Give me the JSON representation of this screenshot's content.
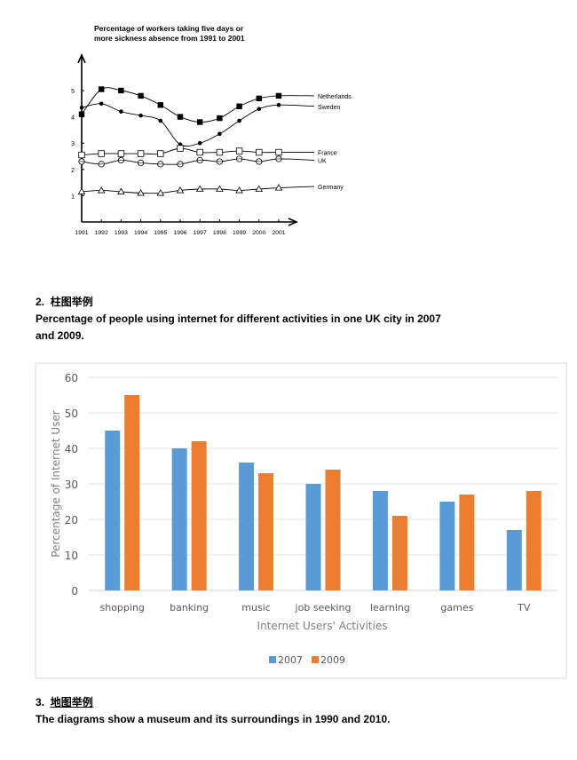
{
  "chart_data": [
    {
      "type": "line",
      "title": "Percentage of workers taking five days or more sickness absence from 1991 to 2001",
      "title_lines": [
        "Percentage of workers taking five days or",
        "more sickness absence from 1991 to 2001"
      ],
      "xlabel": "",
      "ylabel": "",
      "x": [
        1991,
        1992,
        1993,
        1994,
        1995,
        1996,
        1997,
        1998,
        1999,
        2000,
        2001
      ],
      "x_tick_labels": [
        "1991",
        "1992",
        "1993",
        "1994",
        "1995",
        "1996",
        "1997",
        "1998",
        "1999",
        "2000",
        "2001"
      ],
      "y_ticks": [
        1,
        2,
        3,
        4,
        5
      ],
      "y_tick_labels": [
        "1",
        "2",
        "3",
        "4",
        "5"
      ],
      "ylim": [
        0,
        5.9
      ],
      "grid": false,
      "legend": "inline-right",
      "series": [
        {
          "name": "Netherlands",
          "marker": "filled-square",
          "values": [
            4.1,
            5.05,
            5.0,
            4.8,
            4.45,
            4.0,
            3.8,
            3.95,
            4.4,
            4.7,
            4.8
          ],
          "end_value": 4.8
        },
        {
          "name": "Sweden",
          "marker": "filled-circle",
          "values": [
            4.35,
            4.5,
            4.2,
            4.05,
            3.85,
            2.95,
            3.0,
            3.35,
            3.85,
            4.3,
            4.45
          ],
          "end_value": 4.4
        },
        {
          "name": "France",
          "marker": "open-square",
          "values": [
            2.55,
            2.6,
            2.6,
            2.6,
            2.6,
            2.8,
            2.65,
            2.65,
            2.7,
            2.65,
            2.65
          ],
          "end_value": 2.65
        },
        {
          "name": "UK",
          "marker": "open-circle",
          "values": [
            2.3,
            2.2,
            2.35,
            2.25,
            2.2,
            2.2,
            2.35,
            2.3,
            2.4,
            2.3,
            2.4
          ],
          "end_value": 2.35
        },
        {
          "name": "Germany",
          "marker": "open-triangle",
          "values": [
            1.15,
            1.2,
            1.15,
            1.1,
            1.1,
            1.2,
            1.25,
            1.25,
            1.2,
            1.25,
            1.3
          ],
          "end_value": 1.35
        }
      ]
    },
    {
      "type": "bar",
      "title": "Percentage of people using internet for different activities in one UK city in 2007 and 2009.",
      "xlabel": "Internet Users' Activities",
      "ylabel": "Percentage of Internet User",
      "categories": [
        "shopping",
        "banking",
        "music",
        "job seeking",
        "learning",
        "games",
        "TV"
      ],
      "ylim": [
        0,
        60
      ],
      "y_ticks": [
        0,
        10,
        20,
        30,
        40,
        50,
        60
      ],
      "y_tick_labels": [
        "0",
        "10",
        "20",
        "30",
        "40",
        "50",
        "60"
      ],
      "grid": true,
      "legend": "bottom-center",
      "series": [
        {
          "name": "2007",
          "color": "#5b9bd5",
          "values": [
            45,
            40,
            36,
            30,
            28,
            25,
            17
          ]
        },
        {
          "name": "2009",
          "color": "#ed7d31",
          "values": [
            55,
            42,
            33,
            34,
            21,
            27,
            28
          ]
        }
      ]
    }
  ],
  "sections": {
    "s2": {
      "heading_num": "2.",
      "heading_cn": "柱图举例",
      "title_line1": "Percentage of people using internet for different activities in one UK city in 2007",
      "title_line2": "and 2009."
    },
    "s3": {
      "heading_num": "3.",
      "heading_cn": "地图举例",
      "title": "The diagrams show a museum and its surroundings in 1990 and 2010."
    }
  }
}
